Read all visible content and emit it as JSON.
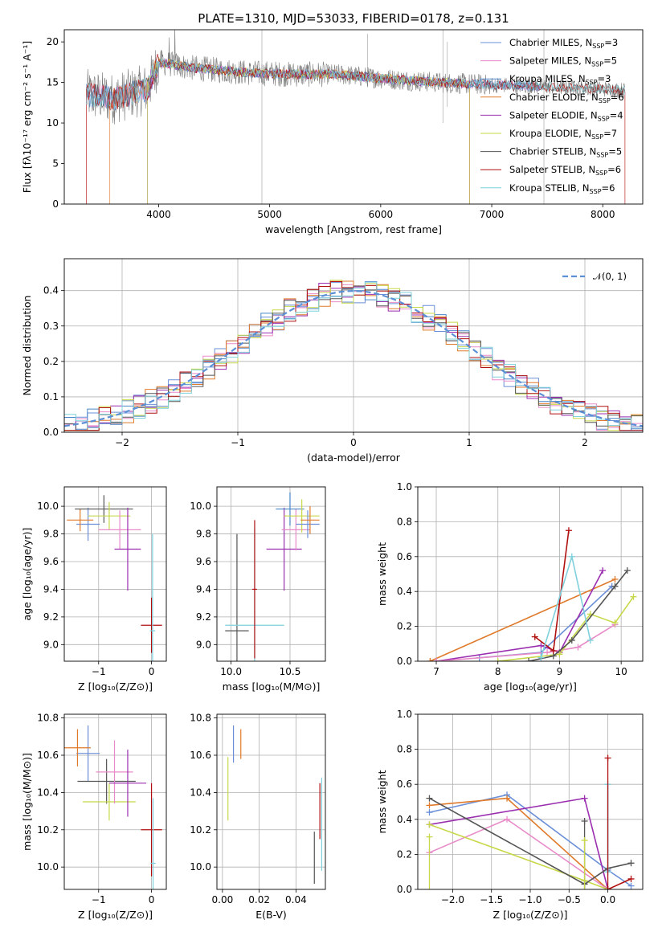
{
  "title": "PLATE=1310, MJD=53033, FIBERID=0178, z=0.131",
  "colors": {
    "series": [
      "#6a8fd8",
      "#e88ac8",
      "#4a86c8",
      "#e07a2a",
      "#9b2fb0",
      "#c8d84a",
      "#555555",
      "#b01010",
      "#7fd0dc"
    ],
    "gaussian": "#5b8fd6",
    "grid": "#b0b0b0",
    "spectrum_gray": "#7a7a7a"
  },
  "chart_data": [
    {
      "id": "spectrum",
      "type": "line",
      "title": "PLATE=1310, MJD=53033, FIBERID=0178, z=0.131",
      "xlabel": "wavelength [Angstrom, rest frame]",
      "ylabel": "Flux [fλ10⁻¹⁷ erg cm⁻² s⁻¹ A⁻¹]",
      "xlim": [
        3150,
        8360
      ],
      "ylim": [
        0,
        21.5
      ],
      "xticks": [
        "4000",
        "5000",
        "6000",
        "7000",
        "8000"
      ],
      "yticks": [
        "0",
        "5",
        "10",
        "15",
        "20"
      ],
      "legend_position": "top-right",
      "grid": false,
      "series": [
        {
          "name": "Chabrier MILES, N_SSP=3",
          "label_main": "Chabrier MILES, N",
          "sub": "SSP",
          "suffix": "=3",
          "range": [
            3350,
            7450
          ]
        },
        {
          "name": "Salpeter MILES, N_SSP=5",
          "label_main": "Salpeter MILES, N",
          "sub": "SSP",
          "suffix": "=5",
          "range": [
            3350,
            7450
          ]
        },
        {
          "name": "Kroupa MILES, N_SSP=3",
          "label_main": "Kroupa MILES, N",
          "sub": "SSP",
          "suffix": "=3",
          "range": [
            3350,
            7450
          ]
        },
        {
          "name": "Chabrier ELODIE, N_SSP=6",
          "label_main": "Chabrier ELODIE, N",
          "sub": "SSP",
          "suffix": "=6",
          "range": [
            3560,
            6800
          ]
        },
        {
          "name": "Salpeter ELODIE, N_SSP=4",
          "label_main": "Salpeter ELODIE, N",
          "sub": "SSP",
          "suffix": "=4",
          "range": [
            3900,
            6800
          ]
        },
        {
          "name": "Kroupa ELODIE, N_SSP=7",
          "label_main": "Kroupa ELODIE, N",
          "sub": "SSP",
          "suffix": "=7",
          "range": [
            3900,
            6800
          ]
        },
        {
          "name": "Chabrier STELIB, N_SSP=5",
          "label_main": "Chabrier STELIB, N",
          "sub": "SSP",
          "suffix": "=5",
          "range": [
            3350,
            8200
          ]
        },
        {
          "name": "Salpeter STELIB, N_SSP=6",
          "label_main": "Salpeter STELIB, N",
          "sub": "SSP",
          "suffix": "=6",
          "range": [
            3350,
            8200
          ]
        },
        {
          "name": "Kroupa STELIB, N_SSP=6",
          "label_main": "Kroupa STELIB, N",
          "sub": "SSP",
          "suffix": "=6",
          "range": [
            3350,
            8200
          ]
        }
      ],
      "continuum": [
        [
          3350,
          13.5
        ],
        [
          3600,
          13.0
        ],
        [
          3900,
          14.2
        ],
        [
          4000,
          17.5
        ],
        [
          4300,
          16.8
        ],
        [
          4800,
          16.2
        ],
        [
          5200,
          16.0
        ],
        [
          5600,
          16.0
        ],
        [
          6000,
          15.5
        ],
        [
          6500,
          15.0
        ],
        [
          7000,
          14.7
        ],
        [
          7500,
          14.5
        ],
        [
          8000,
          14.2
        ],
        [
          8200,
          14.0
        ]
      ]
    },
    {
      "id": "residuals",
      "type": "bar",
      "xlabel": "(data-model)/error",
      "ylabel": "Normed distribution",
      "xlim": [
        -2.5,
        2.5
      ],
      "ylim": [
        0,
        0.49
      ],
      "xticks": [
        "−2",
        "−1",
        "0",
        "1",
        "2"
      ],
      "yticks": [
        "0.0",
        "0.1",
        "0.2",
        "0.3",
        "0.4"
      ],
      "legend": "𝒩(0, 1)",
      "legend_position": "top-right",
      "grid": true,
      "bin_width": 0.1,
      "gaussian": {
        "mu": 0,
        "sigma": 1
      }
    },
    {
      "id": "age-vs-Z",
      "type": "scatter",
      "xlabel": "Z [log₁₀(Z/Z⊙)]",
      "ylabel": "age  [log₁₀(age/yr)]",
      "xlim": [
        -1.65,
        0.28
      ],
      "ylim": [
        8.88,
        10.14
      ],
      "xticks": [
        "−1",
        "0"
      ],
      "yticks": [
        "9.0",
        "9.2",
        "9.4",
        "9.6",
        "9.8",
        "10.0"
      ],
      "grid": true,
      "points": [
        {
          "x": -1.2,
          "xerr": 0.22,
          "y": 9.87,
          "yerr": 0.12,
          "c": 0
        },
        {
          "x": -1.35,
          "xerr": 0.25,
          "y": 9.9,
          "yerr": 0.08,
          "c": 3
        },
        {
          "x": -0.9,
          "xerr": 0.55,
          "y": 9.98,
          "yerr": 0.1,
          "c": 6
        },
        {
          "x": -0.8,
          "xerr": 0.4,
          "y": 9.93,
          "yerr": 0.1,
          "c": 5
        },
        {
          "x": -0.6,
          "xerr": 0.4,
          "y": 9.83,
          "yerr": 0.14,
          "c": 1
        },
        {
          "x": -0.45,
          "xerr": 0.25,
          "y": 9.69,
          "yerr": 0.3,
          "c": 4
        },
        {
          "x": 0.0,
          "xerr": 0.2,
          "y": 9.14,
          "yerr": 0.2,
          "c": 7
        },
        {
          "x": 0.02,
          "xerr": 0.05,
          "y": 9.1,
          "yerr": 0.7,
          "c": 8
        }
      ]
    },
    {
      "id": "age-vs-mass",
      "type": "scatter",
      "xlabel": "mass [log₁₀(M/M⊙)]",
      "ylabel": "",
      "xlim": [
        9.88,
        10.8
      ],
      "ylim": [
        8.88,
        10.14
      ],
      "xticks": [
        "10.0",
        "10.5"
      ],
      "yticks": [
        "9.0",
        "9.2",
        "9.4",
        "9.6",
        "9.8",
        "10.0"
      ],
      "grid": true,
      "points": [
        {
          "x": 10.05,
          "xerr": 0.1,
          "y": 9.1,
          "yerr": 0.7,
          "c": 6
        },
        {
          "x": 10.2,
          "xerr": 0.25,
          "y": 9.14,
          "yerr": 0.7,
          "c": 8
        },
        {
          "x": 10.2,
          "xerr": 0.02,
          "y": 9.4,
          "yerr": 0.5,
          "c": 7
        },
        {
          "x": 10.45,
          "xerr": 0.15,
          "y": 9.69,
          "yerr": 0.3,
          "c": 4
        },
        {
          "x": 10.55,
          "xerr": 0.12,
          "y": 9.83,
          "yerr": 0.15,
          "c": 1
        },
        {
          "x": 10.5,
          "xerr": 0.12,
          "y": 9.98,
          "yerr": 0.12,
          "c": 2
        },
        {
          "x": 10.6,
          "xerr": 0.15,
          "y": 9.93,
          "yerr": 0.12,
          "c": 5
        },
        {
          "x": 10.65,
          "xerr": 0.1,
          "y": 9.87,
          "yerr": 0.1,
          "c": 0
        },
        {
          "x": 10.67,
          "xerr": 0.08,
          "y": 9.9,
          "yerr": 0.1,
          "c": 3
        }
      ]
    },
    {
      "id": "weight-vs-age",
      "type": "line",
      "xlabel": "age  [log₁₀(age/yr)]",
      "ylabel": "mass weight",
      "xlim": [
        6.7,
        10.35
      ],
      "ylim": [
        0,
        1.0
      ],
      "xticks": [
        "7",
        "8",
        "9",
        "10"
      ],
      "yticks": [
        "0.0",
        "0.2",
        "0.4",
        "0.6",
        "0.8",
        "1.0"
      ],
      "grid": true,
      "series": [
        {
          "c": 3,
          "x": [
            6.9,
            9.9
          ],
          "y": [
            0.0,
            0.47
          ]
        },
        {
          "c": 0,
          "x": [
            7.7,
            8.7,
            9.85
          ],
          "y": [
            0.02,
            0.05,
            0.43
          ]
        },
        {
          "c": 4,
          "x": [
            7.0,
            8.7,
            9.0,
            9.7
          ],
          "y": [
            0.0,
            0.09,
            0.05,
            0.52
          ]
        },
        {
          "c": 1,
          "x": [
            7.0,
            8.8,
            9.3,
            9.9
          ],
          "y": [
            0.0,
            0.05,
            0.08,
            0.21
          ]
        },
        {
          "c": 5,
          "x": [
            8.0,
            9.0,
            9.5,
            9.9,
            10.2
          ],
          "y": [
            0.0,
            0.04,
            0.27,
            0.22,
            0.37
          ]
        },
        {
          "c": 6,
          "x": [
            8.5,
            8.9,
            9.2,
            9.9,
            10.1
          ],
          "y": [
            0.0,
            0.03,
            0.12,
            0.43,
            0.52
          ]
        },
        {
          "c": 7,
          "x": [
            8.6,
            8.9,
            9.15
          ],
          "y": [
            0.14,
            0.06,
            0.75
          ]
        },
        {
          "c": 8,
          "x": [
            8.7,
            9.2,
            9.5
          ],
          "y": [
            0.02,
            0.6,
            0.12
          ]
        }
      ]
    },
    {
      "id": "mass-vs-Z",
      "type": "scatter",
      "xlabel": "Z [log₁₀(Z/Z⊙)]",
      "ylabel": "mass [log₁₀(M/M⊙)]",
      "xlim": [
        -1.65,
        0.28
      ],
      "ylim": [
        9.88,
        10.82
      ],
      "xticks": [
        "−1",
        "0"
      ],
      "yticks": [
        "10.0",
        "10.2",
        "10.4",
        "10.6",
        "10.8"
      ],
      "grid": true,
      "points": [
        {
          "x": -1.2,
          "xerr": 0.22,
          "y": 10.61,
          "yerr": 0.15,
          "c": 0
        },
        {
          "x": -1.4,
          "xerr": 0.25,
          "y": 10.64,
          "yerr": 0.1,
          "c": 3
        },
        {
          "x": -0.85,
          "xerr": 0.55,
          "y": 10.46,
          "yerr": 0.12,
          "c": 6
        },
        {
          "x": -0.8,
          "xerr": 0.5,
          "y": 10.35,
          "yerr": 0.1,
          "c": 5
        },
        {
          "x": -0.7,
          "xerr": 0.35,
          "y": 10.51,
          "yerr": 0.17,
          "c": 1
        },
        {
          "x": -0.45,
          "xerr": 0.35,
          "y": 10.45,
          "yerr": 0.18,
          "c": 4
        },
        {
          "x": 0.0,
          "xerr": 0.2,
          "y": 10.2,
          "yerr": 0.25,
          "c": 7
        },
        {
          "x": 0.03,
          "xerr": 0.05,
          "y": 10.02,
          "yerr": 0.35,
          "c": 8
        }
      ]
    },
    {
      "id": "mass-vs-ebv",
      "type": "scatter",
      "xlabel": "E(B-V)",
      "ylabel": "",
      "xlim": [
        -0.003,
        0.056
      ],
      "ylim": [
        9.88,
        10.82
      ],
      "xticks": [
        "0.00",
        "0.02",
        "0.04"
      ],
      "yticks": [
        "10.0",
        "10.2",
        "10.4",
        "10.6",
        "10.8"
      ],
      "grid": true,
      "points": [
        {
          "x": 0.003,
          "y": 10.42,
          "yerr": 0.17,
          "c": 5
        },
        {
          "x": 0.006,
          "y": 10.66,
          "yerr": 0.1,
          "c": 0
        },
        {
          "x": 0.01,
          "y": 10.66,
          "yerr": 0.08,
          "c": 3
        },
        {
          "x": 0.05,
          "y": 10.05,
          "yerr": 0.14,
          "c": 6
        },
        {
          "x": 0.053,
          "y": 10.3,
          "yerr": 0.15,
          "c": 7
        },
        {
          "x": 0.054,
          "y": 10.23,
          "yerr": 0.25,
          "c": 8
        }
      ]
    },
    {
      "id": "weight-vs-Z",
      "type": "line",
      "xlabel": "Z [log₁₀(Z/Z⊙)]",
      "ylabel": "mass weight",
      "xlim": [
        -2.45,
        0.45
      ],
      "ylim": [
        0,
        1.0
      ],
      "xticks": [
        "−2.0",
        "−1.5",
        "−1.0",
        "−0.5",
        "0.0"
      ],
      "yticks": [
        "0.0",
        "0.2",
        "0.4",
        "0.6",
        "0.8",
        "1.0"
      ],
      "grid": true,
      "series": [
        {
          "c": 0,
          "x": [
            -2.3,
            -1.3,
            0.0,
            0.3
          ],
          "y": [
            0.44,
            0.54,
            0.11,
            0.02
          ]
        },
        {
          "c": 3,
          "x": [
            -2.3,
            -1.3,
            0.0
          ],
          "y": [
            0.48,
            0.52,
            0.0
          ]
        },
        {
          "c": 4,
          "x": [
            -2.3,
            -0.3,
            0.0
          ],
          "y": [
            0.37,
            0.52,
            0.0
          ]
        },
        {
          "c": 1,
          "x": [
            -2.3,
            -1.3,
            0.0
          ],
          "y": [
            0.21,
            0.4,
            0.0
          ]
        },
        {
          "c": 5,
          "x": [
            -2.3,
            -0.3,
            0.0
          ],
          "y": [
            0.37,
            0.05,
            0.0
          ]
        },
        {
          "c": 6,
          "x": [
            -2.3,
            -0.3,
            0.0,
            0.3
          ],
          "y": [
            0.52,
            0.03,
            0.12,
            0.15
          ]
        },
        {
          "c": 7,
          "x": [
            0.0,
            0.3
          ],
          "y": [
            0.0,
            0.06
          ]
        },
        {
          "c": 8,
          "x": [
            0.0,
            0.0
          ],
          "y": [
            0.6,
            0.1
          ]
        }
      ],
      "markers_only": [
        {
          "c": 6,
          "x": -0.3,
          "y": 0.39
        },
        {
          "c": 7,
          "x": 0.0,
          "y": 0.75
        },
        {
          "c": 5,
          "x": -2.3,
          "y": 0.3
        },
        {
          "c": 5,
          "x": -0.3,
          "y": 0.28
        }
      ]
    }
  ]
}
